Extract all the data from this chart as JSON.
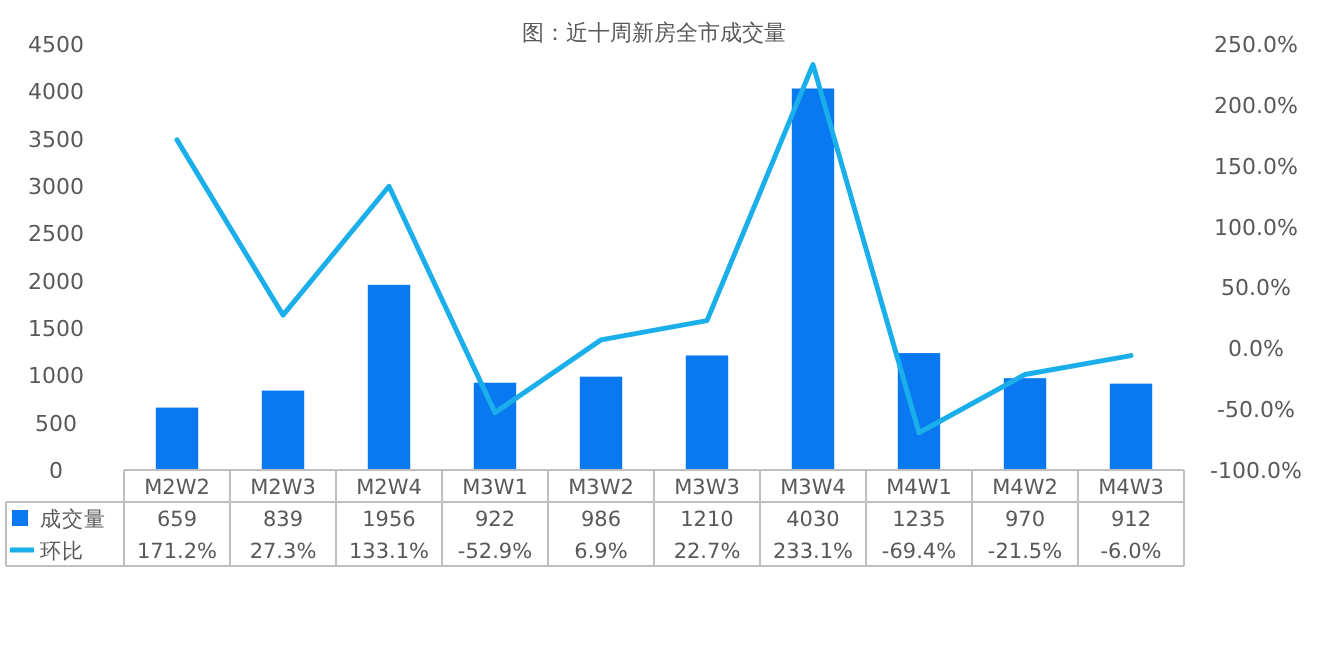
{
  "chart_data": {
    "type": "bar",
    "title": "图：近十周新房全市成交量",
    "categories": [
      "M2W2",
      "M2W3",
      "M2W4",
      "M3W1",
      "M3W2",
      "M3W3",
      "M3W4",
      "M4W1",
      "M4W2",
      "M4W3"
    ],
    "series": [
      {
        "name": "成交量",
        "color": "#0a78f0",
        "values": [
          659,
          839,
          1956,
          922,
          986,
          1210,
          4030,
          1235,
          970,
          912
        ],
        "value_labels": [
          "659",
          "839",
          "1956",
          "922",
          "986",
          "1210",
          "4030",
          "1235",
          "970",
          "912"
        ]
      },
      {
        "name": "环比",
        "type": "line",
        "axis": "y2",
        "color": "#1aaeea",
        "values": [
          171.2,
          27.3,
          133.1,
          -52.9,
          6.9,
          22.7,
          233.1,
          -69.4,
          -21.5,
          -6.0
        ],
        "value_labels": [
          "171.2%",
          "27.3%",
          "133.1%",
          "-52.9%",
          "6.9%",
          "22.7%",
          "233.1%",
          "-69.4%",
          "-21.5%",
          "-6.0%"
        ]
      }
    ],
    "ylim": [
      0,
      4500
    ],
    "yticks": [
      0,
      500,
      1000,
      1500,
      2000,
      2500,
      3000,
      3500,
      4000,
      4500
    ],
    "y2lim": [
      -100,
      250
    ],
    "y2ticks": [
      {
        "value": -100,
        "label": "-100.0%"
      },
      {
        "value": -50,
        "label": "-50.0%"
      },
      {
        "value": 0,
        "label": "0.0%"
      },
      {
        "value": 50,
        "label": "50.0%"
      },
      {
        "value": 100,
        "label": "100.0%"
      },
      {
        "value": 150,
        "label": "150.0%"
      },
      {
        "value": 200,
        "label": "200.0%"
      },
      {
        "value": 250,
        "label": "250.0%"
      }
    ],
    "legend": "bottom"
  }
}
